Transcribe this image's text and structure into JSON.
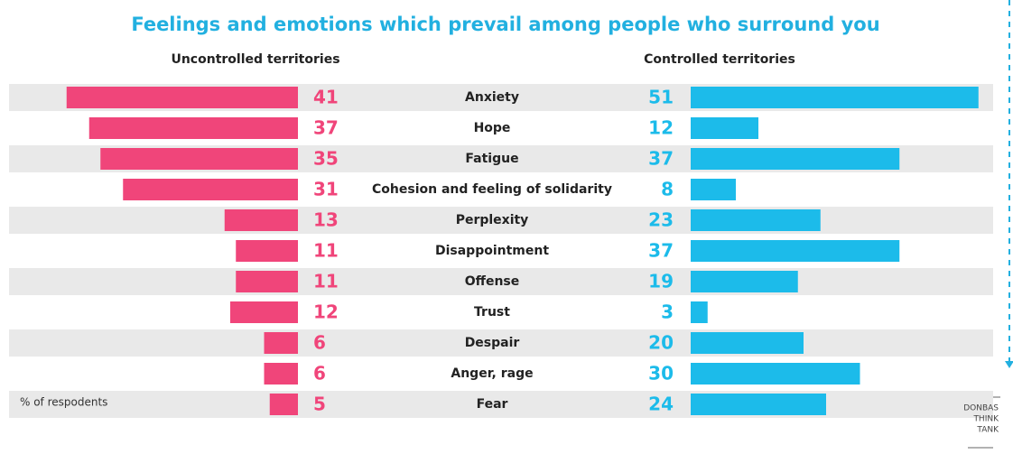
{
  "chart_data": {
    "type": "butterfly",
    "title": "Feelings and emotions which prevail among people who surround you",
    "categories": [
      "Anxiety",
      "Hope",
      "Fatigue",
      "Cohesion and feeling of solidarity",
      "Perplexity",
      "Disappointment",
      "Offense",
      "Trust",
      "Despair",
      "Anger, rage",
      "Fear"
    ],
    "series": [
      {
        "name": "Uncontrolled territories",
        "color": "#f0457a",
        "values": [
          41,
          37,
          35,
          31,
          13,
          11,
          11,
          12,
          6,
          6,
          5
        ]
      },
      {
        "name": "Controlled territories",
        "color": "#1cbbea",
        "values": [
          51,
          12,
          37,
          8,
          23,
          37,
          19,
          3,
          20,
          30,
          24
        ]
      }
    ],
    "note": "% of respodents",
    "source": [
      "DONBAS",
      "THINK",
      "TANK"
    ]
  }
}
